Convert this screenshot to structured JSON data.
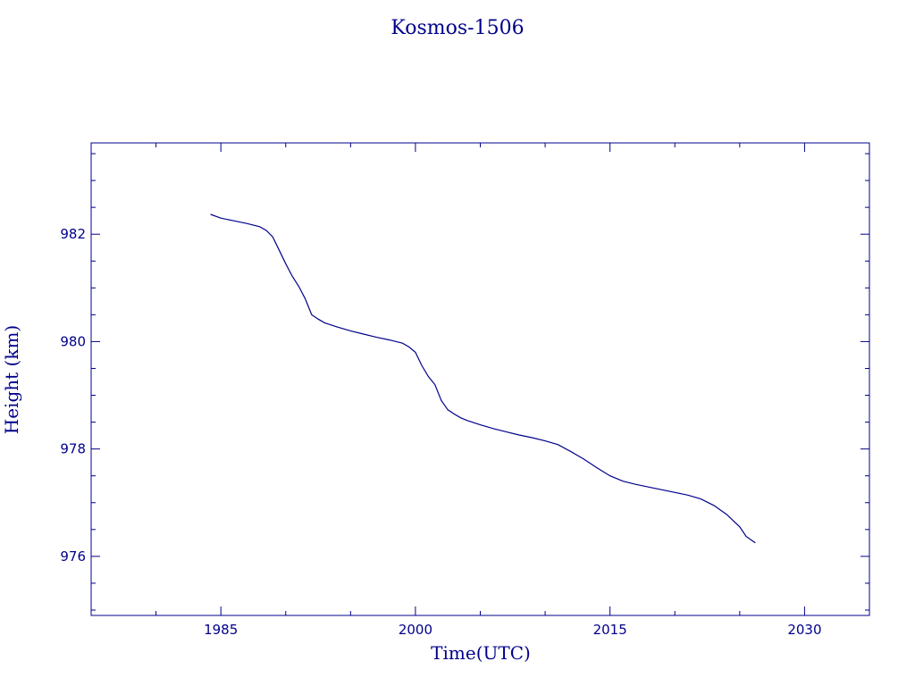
{
  "chart_data": {
    "type": "line",
    "title": "Kosmos-1506",
    "xlabel": "Time(UTC)",
    "ylabel": "Height (km)",
    "xlim": [
      1975,
      2035
    ],
    "ylim": [
      974.9,
      983.7
    ],
    "x_ticks": [
      1985,
      2000,
      2015,
      2030
    ],
    "y_ticks": [
      976,
      978,
      980,
      982
    ],
    "grid": false,
    "colors": {
      "line": "#00008b",
      "axes": "#00008b",
      "text": "#00008b"
    },
    "series": [
      {
        "x": [
          1984.2,
          1985,
          1986,
          1987,
          1988,
          1988.5,
          1989,
          1989.5,
          1990,
          1990.5,
          1991,
          1991.5,
          1992,
          1992.5,
          1993,
          1994,
          1995,
          1996,
          1997,
          1998,
          1999,
          1999.5,
          2000,
          2000.5,
          2001,
          2001.5,
          2002,
          2002.5,
          2003,
          2003.5,
          2004,
          2005,
          2006,
          2007,
          2008,
          2009,
          2010,
          2011,
          2012,
          2013,
          2014,
          2015,
          2016,
          2017,
          2018,
          2019,
          2020,
          2021,
          2022,
          2023,
          2024,
          2025,
          2025.5,
          2026.2
        ],
        "y": [
          982.37,
          982.3,
          982.25,
          982.2,
          982.14,
          982.07,
          981.95,
          981.7,
          981.45,
          981.22,
          981.03,
          980.8,
          980.5,
          980.42,
          980.35,
          980.27,
          980.2,
          980.14,
          980.08,
          980.03,
          979.97,
          979.9,
          979.8,
          979.55,
          979.35,
          979.2,
          978.9,
          978.73,
          978.65,
          978.58,
          978.53,
          978.45,
          978.38,
          978.32,
          978.26,
          978.21,
          978.15,
          978.08,
          977.95,
          977.81,
          977.65,
          977.5,
          977.4,
          977.34,
          977.29,
          977.24,
          977.19,
          977.14,
          977.07,
          976.95,
          976.78,
          976.55,
          976.37,
          976.25
        ]
      }
    ]
  }
}
